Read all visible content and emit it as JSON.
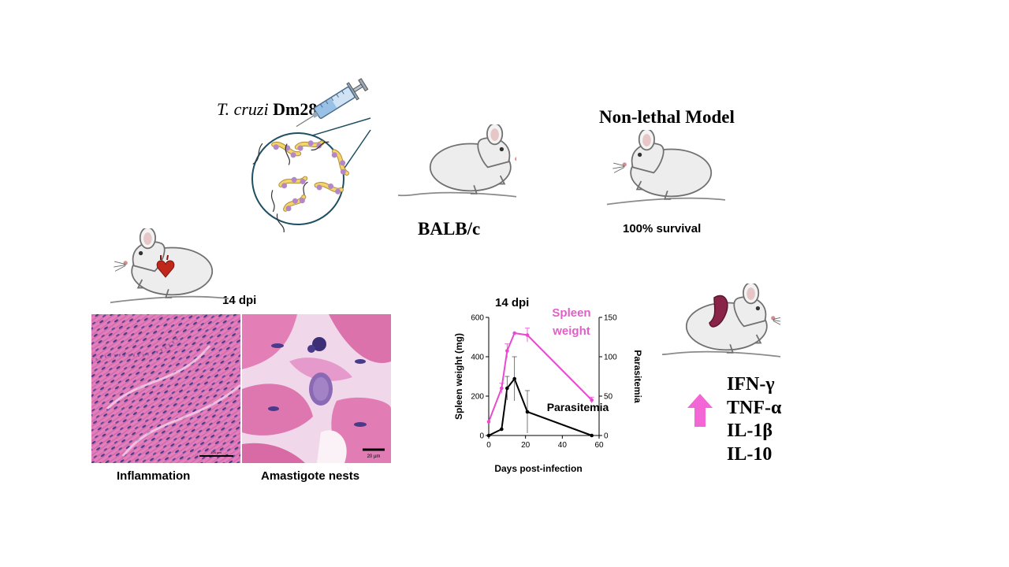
{
  "labels": {
    "tcruzi_species": "T. cruzi",
    "tcruzi_strain": "Dm28c",
    "strain_model": "BALB/c",
    "model_title": "Non-lethal Model",
    "survival": "100% survival",
    "dpi_histology": "14 dpi",
    "dpi_chart": "14 dpi",
    "caption_inflammation": "Inflammation",
    "caption_amastigote": "Amastigote nests",
    "scale_bar_left": "100 µm",
    "scale_bar_right": "20 µm"
  },
  "cytokines": [
    "IFN-γ",
    "TNF-α",
    "IL-1β",
    "IL-10"
  ],
  "colors": {
    "spleen_series": "#e84ad0",
    "parasitemia_series": "#000000",
    "up_arrow": "#f266d6",
    "pink_text": "#e060c8"
  },
  "chart_data": {
    "type": "line",
    "xlabel": "Days post-infection",
    "ylabel_left": "Spleen weight (mg)",
    "ylabel_right": "Parasitemia",
    "xlim": [
      0,
      60
    ],
    "ylim_left": [
      0,
      600
    ],
    "ylim_right": [
      0,
      150
    ],
    "x_ticks": [
      0,
      20,
      40,
      60
    ],
    "y_ticks_left": [
      0,
      200,
      400,
      600
    ],
    "y_ticks_right": [
      0,
      50,
      100,
      150
    ],
    "series": [
      {
        "name": "Spleen weight",
        "axis": "left",
        "x": [
          0,
          7,
          10,
          14,
          21,
          56
        ],
        "y": [
          70,
          240,
          430,
          520,
          510,
          180
        ],
        "err": [
          0,
          25,
          35,
          0,
          35,
          15
        ]
      },
      {
        "name": "Parasitemia",
        "axis": "right",
        "x": [
          0,
          7,
          10,
          14,
          21,
          56
        ],
        "y": [
          0,
          8,
          60,
          72,
          30,
          0
        ],
        "err": [
          0,
          0,
          15,
          28,
          27,
          0
        ]
      }
    ]
  }
}
